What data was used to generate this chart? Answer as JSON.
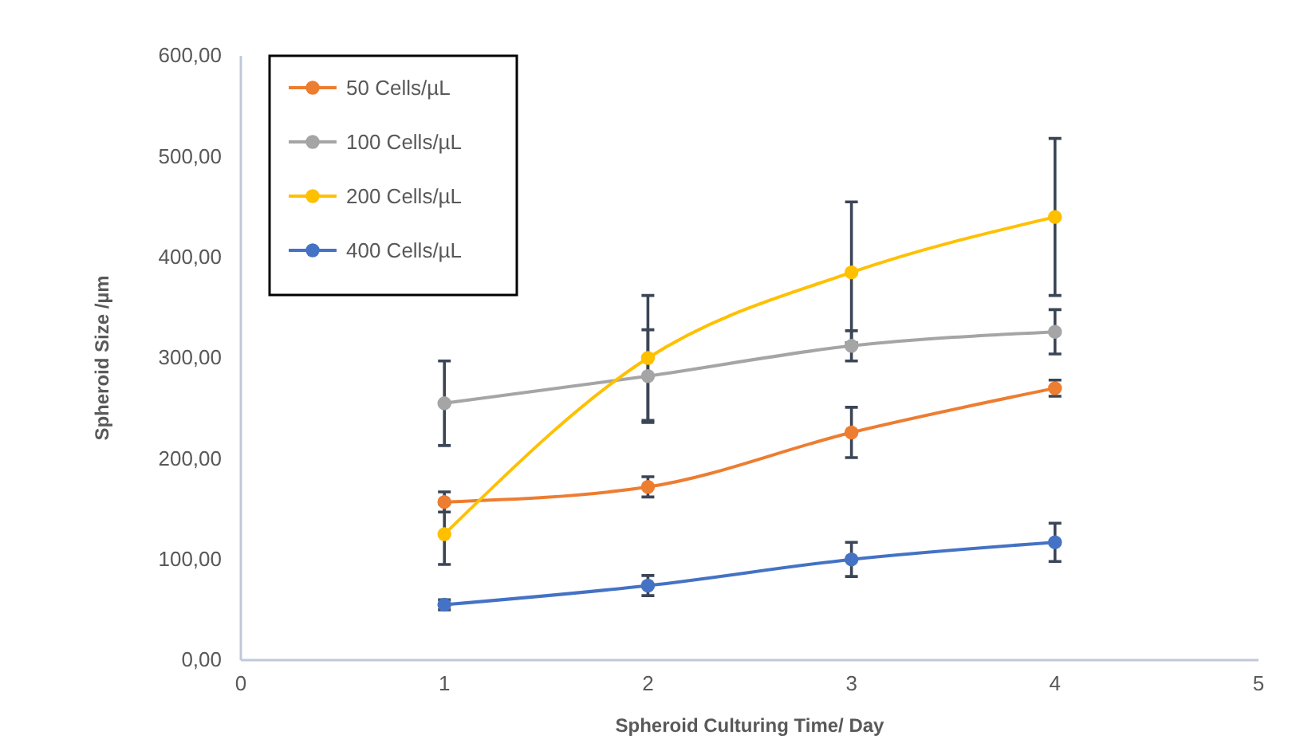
{
  "chart_data": {
    "type": "line",
    "xlabel": "Spheroid Culturing Time/ Day",
    "ylabel": "Spheroid Size /µm",
    "x": [
      1,
      2,
      3,
      4
    ],
    "xlim": [
      0,
      5
    ],
    "xticks": [
      0,
      1,
      2,
      3,
      4,
      5
    ],
    "ylim": [
      0,
      600
    ],
    "yticks": [
      {
        "value": 0,
        "label": "0,00"
      },
      {
        "value": 100,
        "label": "100,00"
      },
      {
        "value": 200,
        "label": "200,00"
      },
      {
        "value": 300,
        "label": "300,00"
      },
      {
        "value": 400,
        "label": "400,00"
      },
      {
        "value": 500,
        "label": "500,00"
      },
      {
        "value": 600,
        "label": "600,00"
      }
    ],
    "grid": false,
    "legend": "top left",
    "marker": "circle",
    "line_style": "solid",
    "series": [
      {
        "name": "50 Cells/µL",
        "color": "#ed7d31",
        "values": [
          157,
          172,
          226,
          270
        ],
        "errors": [
          10,
          10,
          25,
          8
        ]
      },
      {
        "name": "100 Cells/µL",
        "color": "#a5a5a5",
        "values": [
          255,
          282,
          312,
          326
        ],
        "errors": [
          42,
          46,
          15,
          22
        ]
      },
      {
        "name": "200 Cells/µL",
        "color": "#ffc000",
        "values": [
          125,
          300,
          385,
          440
        ],
        "errors": [
          30,
          62,
          70,
          78
        ]
      },
      {
        "name": "400 Cells/µL",
        "color": "#4472c4",
        "values": [
          55,
          74,
          100,
          117
        ],
        "errors": [
          5,
          10,
          17,
          19
        ]
      }
    ]
  }
}
